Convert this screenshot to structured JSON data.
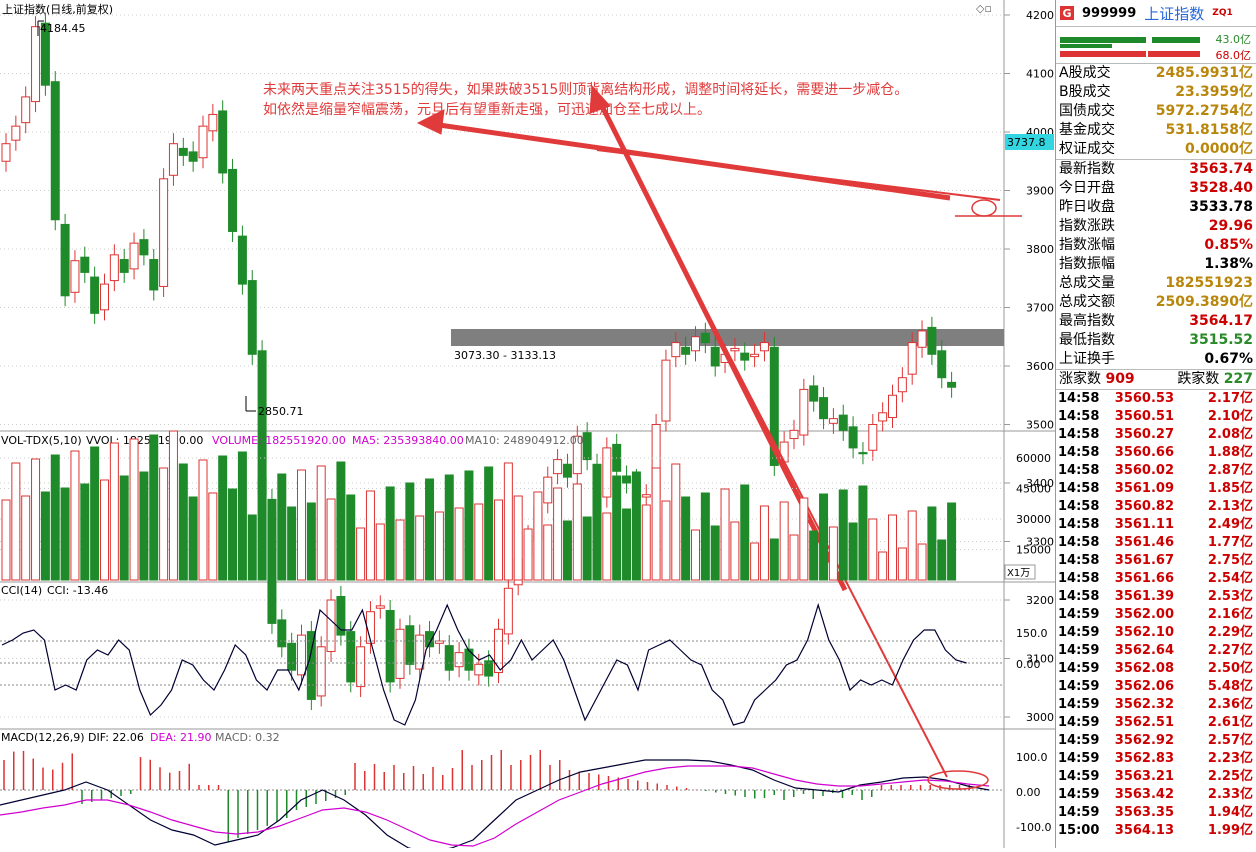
{
  "kline": {
    "title": "上证指数(日线,前复权)",
    "high_mark": "4184.45",
    "low_mark": "2850.71",
    "box_label": "3073.30 - 3133.13",
    "current_tag": "3737.8",
    "y_ticks": [
      "4200",
      "4100",
      "4000",
      "3900",
      "3800",
      "3700",
      "3600",
      "3500",
      "3400",
      "3300",
      "3200",
      "3100",
      "3000"
    ]
  },
  "annotation": {
    "line1": "未来两天重点关注3515的得失，如果跌破3515则顶背离结构形成，调整时间将延长，需要进一步减仓。",
    "line2": "如依然是缩量窄幅震荡，元旦后有望重新走强，可迅速加仓至七成以上。",
    "color": "#e03a3a"
  },
  "volume": {
    "header": {
      "a": "VOL-TDX(5,10)",
      "b": "VVOL: 182551920.00",
      "c": "VOLUME: 182551920.00",
      "d": "MA5: 235393840.00",
      "e": "MA10: 248904912.00"
    },
    "y_ticks": [
      "60000",
      "45000",
      "30000",
      "15000"
    ],
    "unit": "X1万"
  },
  "cci": {
    "header": {
      "a": "CCI(14)",
      "b": "CCI: -13.46"
    },
    "y_ticks": [
      "150.0",
      "0.00"
    ]
  },
  "macd": {
    "header": {
      "a": "MACD(12,26,9)",
      "b": "DIF: 22.06",
      "c": "DEA: 21.90",
      "d": "MACD: 0.32"
    },
    "y_ticks": [
      "100.0",
      "0.00",
      "-100.0"
    ]
  },
  "panel": {
    "code": "999999",
    "name": "上证指数",
    "superscript": "ZQ1",
    "bar_top_value": "43.0亿",
    "bar_bottom_value": "68.0亿",
    "rows_a": [
      {
        "k": "A股成交",
        "v": "2485.9931亿"
      },
      {
        "k": "B股成交",
        "v": "23.3959亿"
      },
      {
        "k": "国债成交",
        "v": "5972.2754亿"
      },
      {
        "k": "基金成交",
        "v": "531.8158亿"
      },
      {
        "k": "权证成交",
        "v": "0.0000亿"
      }
    ],
    "rows_b": [
      {
        "k": "最新指数",
        "v": "3563.74",
        "c": "#c00"
      },
      {
        "k": "今日开盘",
        "v": "3528.40",
        "c": "#c00"
      },
      {
        "k": "昨日收盘",
        "v": "3533.78",
        "c": "#000"
      },
      {
        "k": "指数涨跌",
        "v": "29.96",
        "c": "#c00"
      },
      {
        "k": "指数涨幅",
        "v": "0.85%",
        "c": "#c00"
      },
      {
        "k": "指数振幅",
        "v": "1.38%",
        "c": "#000"
      },
      {
        "k": "总成交量",
        "v": "182551923",
        "c": "#b8860b"
      },
      {
        "k": "总成交额",
        "v": "2509.3890亿",
        "c": "#b8860b"
      },
      {
        "k": "最高指数",
        "v": "3564.17",
        "c": "#c00"
      },
      {
        "k": "最低指数",
        "v": "3515.52",
        "c": "#2a8a2a"
      },
      {
        "k": "上证换手",
        "v": "0.67%",
        "c": "#000"
      }
    ],
    "advance_label": "涨家数",
    "advance_value": "909",
    "decline_label": "跌家数",
    "decline_value": "227",
    "ticks": [
      [
        "14:58",
        "3560.53",
        "2.17亿"
      ],
      [
        "14:58",
        "3560.51",
        "2.10亿"
      ],
      [
        "14:58",
        "3560.27",
        "2.08亿"
      ],
      [
        "14:58",
        "3560.66",
        "1.88亿"
      ],
      [
        "14:58",
        "3560.02",
        "2.87亿"
      ],
      [
        "14:58",
        "3561.09",
        "1.85亿"
      ],
      [
        "14:58",
        "3560.82",
        "2.13亿"
      ],
      [
        "14:58",
        "3561.11",
        "2.49亿"
      ],
      [
        "14:58",
        "3561.46",
        "1.77亿"
      ],
      [
        "14:58",
        "3561.67",
        "2.75亿"
      ],
      [
        "14:58",
        "3561.66",
        "2.54亿"
      ],
      [
        "14:58",
        "3561.39",
        "2.53亿"
      ],
      [
        "14:59",
        "3562.00",
        "2.16亿"
      ],
      [
        "14:59",
        "3562.10",
        "2.29亿"
      ],
      [
        "14:59",
        "3562.64",
        "2.27亿"
      ],
      [
        "14:59",
        "3562.08",
        "2.50亿"
      ],
      [
        "14:59",
        "3562.06",
        "5.48亿"
      ],
      [
        "14:59",
        "3562.32",
        "2.36亿"
      ],
      [
        "14:59",
        "3562.51",
        "2.61亿"
      ],
      [
        "14:59",
        "3562.92",
        "2.57亿"
      ],
      [
        "14:59",
        "3562.83",
        "2.23亿"
      ],
      [
        "14:59",
        "3563.21",
        "2.25亿"
      ],
      [
        "14:59",
        "3563.42",
        "2.33亿"
      ],
      [
        "14:59",
        "3563.35",
        "1.94亿"
      ],
      [
        "15:00",
        "3564.13",
        "1.99亿"
      ]
    ]
  }
}
